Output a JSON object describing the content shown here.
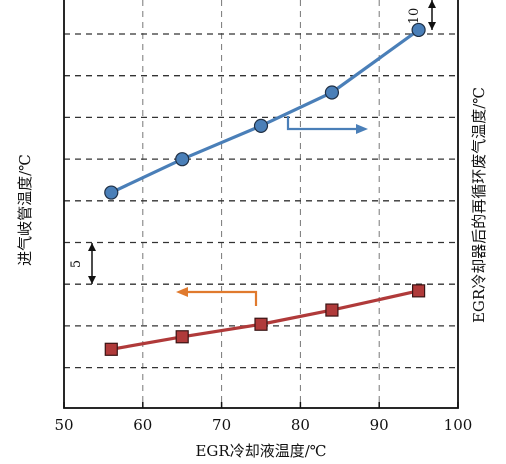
{
  "chart_data": {
    "type": "line",
    "title": "",
    "xlabel": "EGR冷却液温度/℃",
    "ylabel_left": "进气岐管温度/℃",
    "ylabel_right": "EGR冷却器后的再循环废气温度/℃",
    "xlim": [
      50,
      100
    ],
    "x_ticks": [
      50,
      60,
      70,
      80,
      90,
      100
    ],
    "x_tick_labels": [
      "50",
      "60",
      "70",
      "80",
      "90",
      "100"
    ],
    "grid": true,
    "y_left_scale_label": "5",
    "y_right_scale_label": "10",
    "series": [
      {
        "axis": "right",
        "color": "#4a7fb8",
        "marker": "circle",
        "x": [
          56,
          65,
          75,
          84,
          95
        ],
        "values": [
          92,
          100,
          108,
          116,
          131
        ]
      },
      {
        "axis": "left",
        "color": "#b03a3a",
        "marker": "square",
        "x": [
          56,
          65,
          75,
          84,
          95
        ],
        "values": [
          34,
          35.5,
          37,
          38.7,
          41
        ]
      }
    ],
    "annotations": [
      {
        "type": "arrow",
        "direction": "right",
        "color": "#4a7fb8",
        "meaning": "right-axis"
      },
      {
        "type": "arrow",
        "direction": "left",
        "color": "#e07a2e",
        "meaning": "left-axis"
      }
    ]
  }
}
